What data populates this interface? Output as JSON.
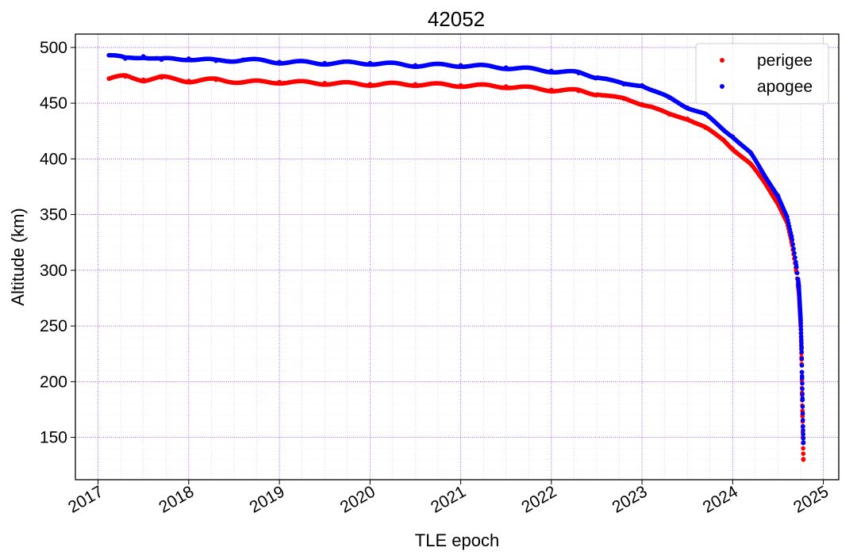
{
  "chart_data": {
    "type": "scatter",
    "title": "42052",
    "xlabel": "TLE epoch",
    "ylabel": "Altitude (km)",
    "xlim": [
      2016.75,
      2025.17
    ],
    "ylim": [
      112,
      512
    ],
    "x_ticks": [
      2017,
      2018,
      2019,
      2020,
      2021,
      2022,
      2023,
      2024,
      2025
    ],
    "x_tick_labels": [
      "2017",
      "2018",
      "2019",
      "2020",
      "2021",
      "2022",
      "2023",
      "2024",
      "2025"
    ],
    "y_ticks": [
      150,
      200,
      250,
      300,
      350,
      400,
      450,
      500
    ],
    "y_tick_labels": [
      "150",
      "200",
      "250",
      "300",
      "350",
      "400",
      "450",
      "500"
    ],
    "grid": true,
    "legend_position": "top-right",
    "series": [
      {
        "name": "perigee",
        "color": "#ff0000",
        "points": [
          [
            2017.12,
            472
          ],
          [
            2017.3,
            474
          ],
          [
            2017.5,
            471
          ],
          [
            2017.7,
            473
          ],
          [
            2018.0,
            470
          ],
          [
            2018.3,
            471
          ],
          [
            2018.6,
            469
          ],
          [
            2019.0,
            469
          ],
          [
            2019.5,
            468
          ],
          [
            2020.0,
            467
          ],
          [
            2020.5,
            467
          ],
          [
            2021.0,
            466
          ],
          [
            2021.5,
            465
          ],
          [
            2022.0,
            462
          ],
          [
            2022.3,
            461
          ],
          [
            2022.6,
            457
          ],
          [
            2022.8,
            454
          ],
          [
            2023.0,
            449
          ],
          [
            2023.1,
            447
          ],
          [
            2023.3,
            440
          ],
          [
            2023.5,
            436
          ],
          [
            2023.7,
            428
          ],
          [
            2023.9,
            417
          ],
          [
            2024.0,
            409
          ],
          [
            2024.2,
            395
          ],
          [
            2024.35,
            379
          ],
          [
            2024.5,
            360
          ],
          [
            2024.6,
            343
          ],
          [
            2024.65,
            325
          ],
          [
            2024.7,
            300
          ],
          [
            2024.73,
            280
          ],
          [
            2024.75,
            250
          ],
          [
            2024.76,
            220
          ],
          [
            2024.765,
            190
          ],
          [
            2024.77,
            170
          ],
          [
            2024.775,
            150
          ],
          [
            2024.78,
            130
          ]
        ]
      },
      {
        "name": "apogee",
        "color": "#0000ff",
        "points": [
          [
            2017.12,
            493
          ],
          [
            2017.3,
            490
          ],
          [
            2017.5,
            492
          ],
          [
            2017.7,
            489
          ],
          [
            2018.0,
            490
          ],
          [
            2018.3,
            488
          ],
          [
            2018.6,
            489
          ],
          [
            2019.0,
            487
          ],
          [
            2019.5,
            486
          ],
          [
            2020.0,
            486
          ],
          [
            2020.5,
            484
          ],
          [
            2021.0,
            484
          ],
          [
            2021.5,
            482
          ],
          [
            2022.0,
            479
          ],
          [
            2022.3,
            477
          ],
          [
            2022.6,
            472
          ],
          [
            2022.8,
            467
          ],
          [
            2023.0,
            466
          ],
          [
            2023.1,
            462
          ],
          [
            2023.3,
            455
          ],
          [
            2023.5,
            446
          ],
          [
            2023.7,
            440
          ],
          [
            2023.9,
            426
          ],
          [
            2024.0,
            420
          ],
          [
            2024.2,
            405
          ],
          [
            2024.35,
            385
          ],
          [
            2024.5,
            367
          ],
          [
            2024.6,
            348
          ],
          [
            2024.65,
            330
          ],
          [
            2024.7,
            305
          ],
          [
            2024.73,
            285
          ],
          [
            2024.75,
            255
          ],
          [
            2024.76,
            230
          ],
          [
            2024.765,
            205
          ],
          [
            2024.77,
            185
          ],
          [
            2024.775,
            160
          ],
          [
            2024.78,
            145
          ]
        ]
      }
    ]
  }
}
